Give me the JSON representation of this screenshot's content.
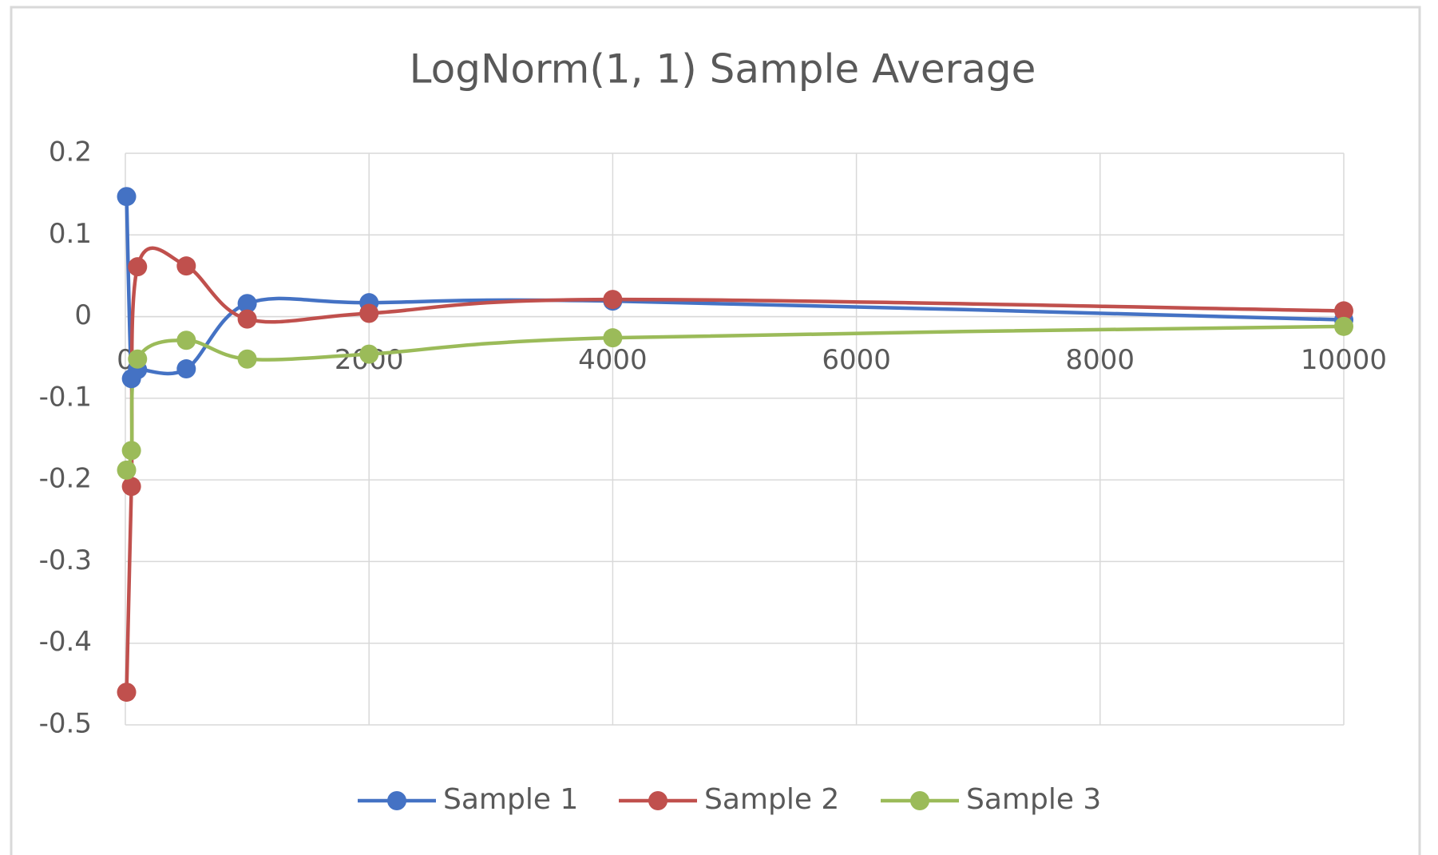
{
  "chart_data": {
    "type": "line",
    "title": "LogNorm(1, 1) Sample Average",
    "x": [
      10,
      50,
      100,
      500,
      1000,
      2000,
      4000,
      10000
    ],
    "series": [
      {
        "name": "Sample 1",
        "color": "#4472c4",
        "values": [
          0.147,
          -0.076,
          -0.065,
          -0.064,
          0.016,
          0.017,
          0.019,
          -0.004
        ]
      },
      {
        "name": "Sample 2",
        "color": "#c0504d",
        "values": [
          -0.46,
          -0.208,
          0.061,
          0.062,
          -0.003,
          0.004,
          0.021,
          0.007
        ]
      },
      {
        "name": "Sample 3",
        "color": "#9bbb59",
        "values": [
          -0.188,
          -0.164,
          -0.052,
          -0.029,
          -0.052,
          -0.046,
          -0.026,
          -0.012
        ]
      }
    ],
    "xlim": [
      0,
      10000
    ],
    "xticks": [
      0,
      2000,
      4000,
      6000,
      8000,
      10000
    ],
    "ylim": [
      -0.5,
      0.2
    ],
    "yticks": [
      0.2,
      0.1,
      0,
      -0.1,
      -0.2,
      -0.3,
      -0.4,
      -0.5
    ],
    "grid": true,
    "legend": "bottom"
  }
}
